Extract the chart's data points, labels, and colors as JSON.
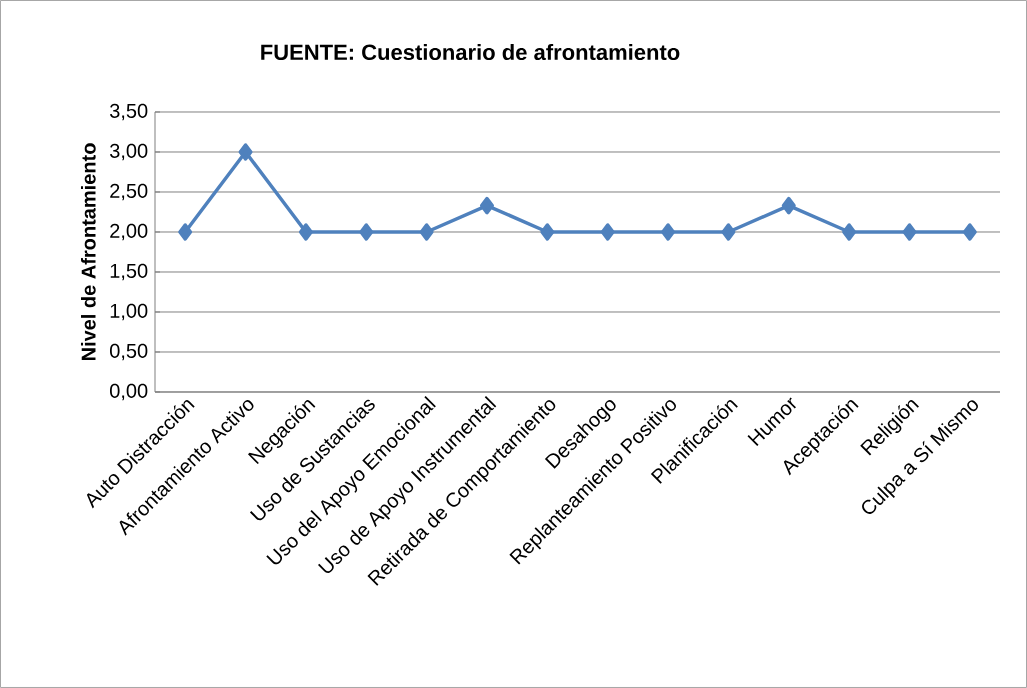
{
  "chart_data": {
    "type": "line",
    "title": "FUENTE:    Cuestionario de afrontamiento",
    "ylabel": "Nivel de Afrontamiento",
    "categories": [
      "Auto Distracción",
      "Afrontamiento Activo",
      "Negación",
      "Uso de Sustancias",
      "Uso del Apoyo Emocional",
      "Uso de Apoyo Instrumental",
      "Retirada de Comportamiento",
      "Desahogo",
      "Replanteamiento Positivo",
      "Planificación",
      "Humor",
      "Aceptación",
      "Religión",
      "Culpa a Sí Mismo"
    ],
    "values": [
      2,
      3,
      2,
      2,
      2,
      2.33,
      2,
      2,
      2,
      2,
      2.33,
      2,
      2,
      2
    ],
    "color": "#4f81bd",
    "ylim": [
      0,
      3.5
    ],
    "yticks": [
      {
        "value": 0,
        "label": "0,00"
      },
      {
        "value": 0.5,
        "label": "0,50"
      },
      {
        "value": 1,
        "label": "1,00"
      },
      {
        "value": 1.5,
        "label": "1,50"
      },
      {
        "value": 2,
        "label": "2,00"
      },
      {
        "value": 2.5,
        "label": "2,50"
      },
      {
        "value": 3,
        "label": "3,00"
      },
      {
        "value": 3.5,
        "label": "3,50"
      }
    ],
    "grid": "y",
    "marker": "diamond",
    "line_style": "solid"
  }
}
